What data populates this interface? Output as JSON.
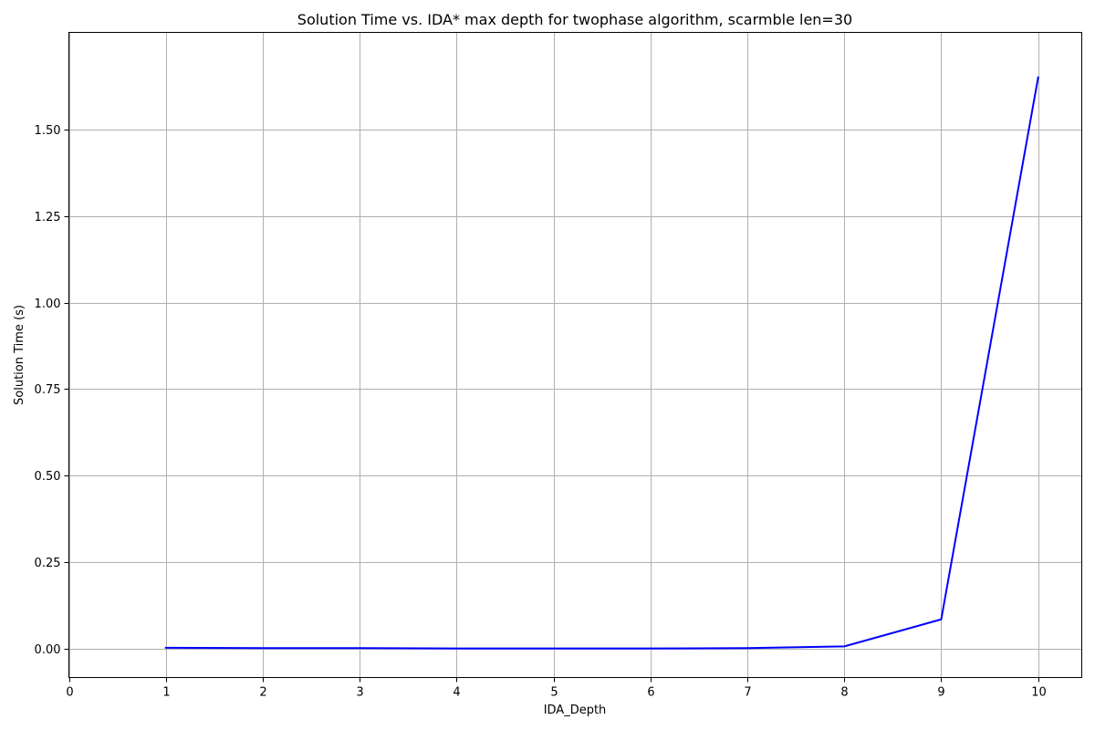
{
  "chart_data": {
    "type": "line",
    "title": "Solution Time vs. IDA* max depth for twophase algorithm, scarmble len=30",
    "xlabel": "IDA_Depth",
    "ylabel": "Solution Time (s)",
    "xlim": [
      0,
      10.45
    ],
    "ylim": [
      -0.083,
      1.78
    ],
    "xticks": [
      0,
      1,
      2,
      3,
      4,
      5,
      6,
      7,
      8,
      9,
      10
    ],
    "xtick_labels": [
      "0",
      "1",
      "2",
      "3",
      "4",
      "5",
      "6",
      "7",
      "8",
      "9",
      "10"
    ],
    "yticks": [
      0.0,
      0.25,
      0.5,
      0.75,
      1.0,
      1.25,
      1.5
    ],
    "ytick_labels": [
      "0.00",
      "0.25",
      "0.50",
      "0.75",
      "1.00",
      "1.25",
      "1.50"
    ],
    "grid": true,
    "legend": false,
    "series": [
      {
        "color": "#0000ff",
        "x": [
          1,
          2,
          3,
          4,
          5,
          6,
          7,
          8,
          9,
          10
        ],
        "y": [
          0.003,
          0.002,
          0.002,
          0.001,
          0.001,
          0.001,
          0.002,
          0.007,
          0.085,
          1.65
        ]
      }
    ]
  }
}
